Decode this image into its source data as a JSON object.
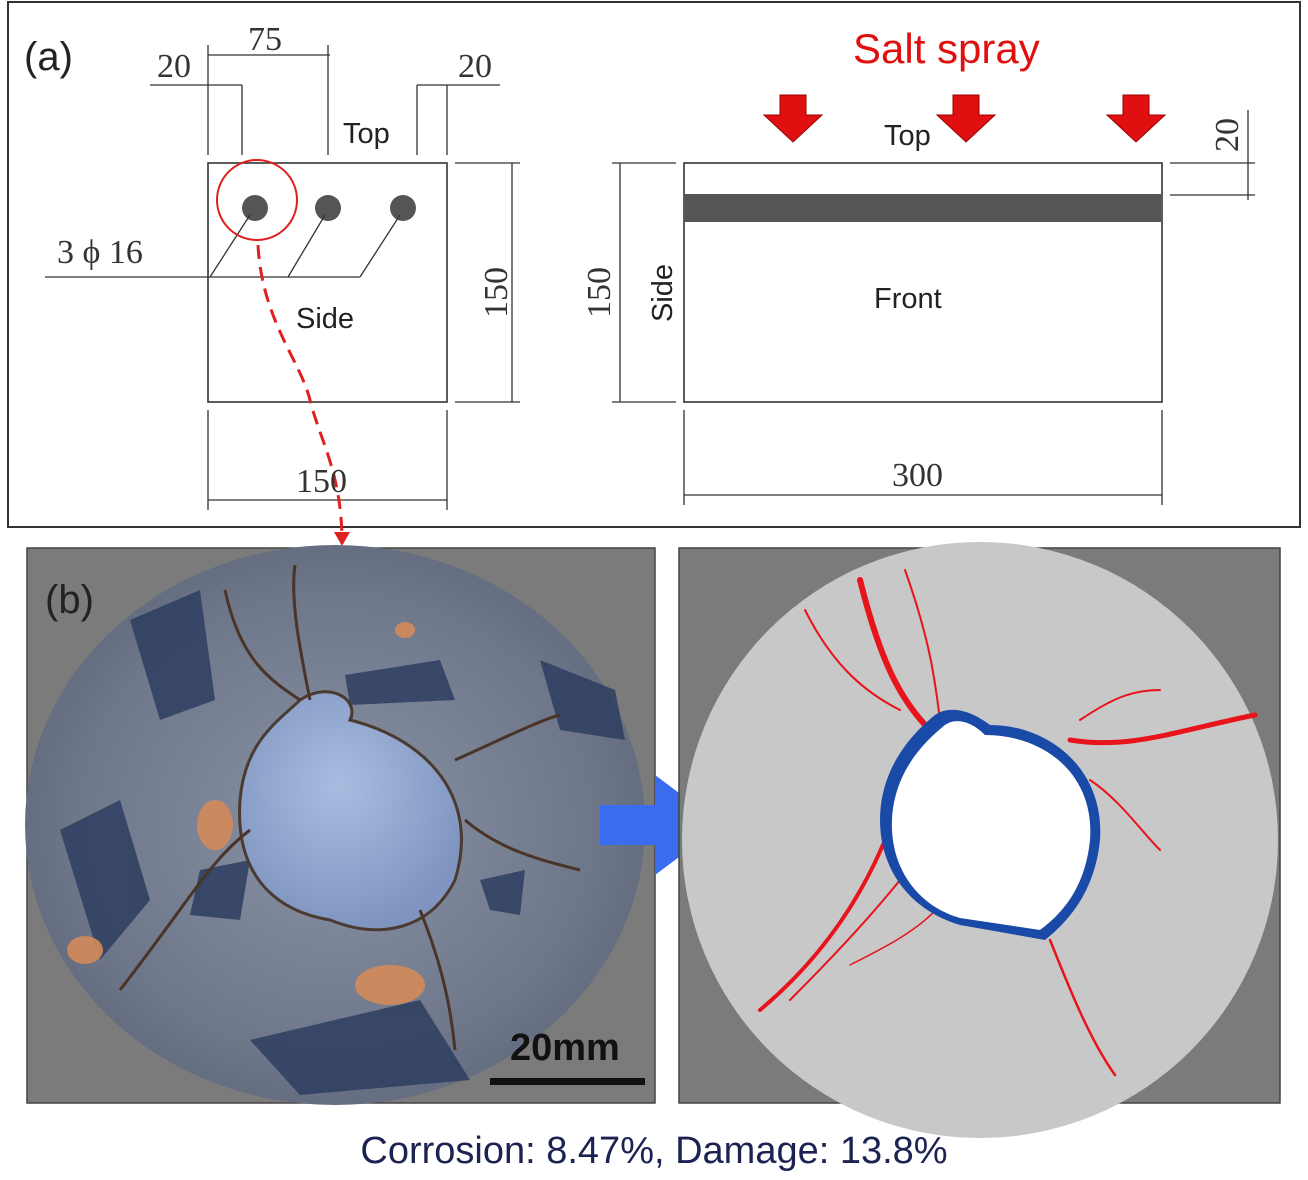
{
  "panel_a": {
    "label": "(a)",
    "cross_section": {
      "dim_left_cover": "20",
      "dim_spacing": "75",
      "dim_right_cover": "20",
      "dim_height": "150",
      "dim_width": "150",
      "top_label": "Top",
      "side_label": "Side",
      "rebar_label": "3 ϕ 16"
    },
    "elevation": {
      "salt_spray_label": "Salt spray",
      "top_label": "Top",
      "side_label": "Side",
      "front_label": "Front",
      "dim_cover": "20",
      "dim_height": "150",
      "dim_length": "300"
    },
    "colors": {
      "salt_spray": "#e01010",
      "rebar": "#555555",
      "highlight": "#e02020"
    }
  },
  "panel_b": {
    "label": "(b)",
    "scale_bar_label": "20mm",
    "colors": {
      "background": "#7b7b7b",
      "concrete_map": "#c8c8c8",
      "cracks": "#e8141c",
      "corrosion_layer": "#1a4aa8",
      "arrow": "#3a6cf0"
    }
  },
  "caption": "Corrosion: 8.47%, Damage: 13.8%"
}
